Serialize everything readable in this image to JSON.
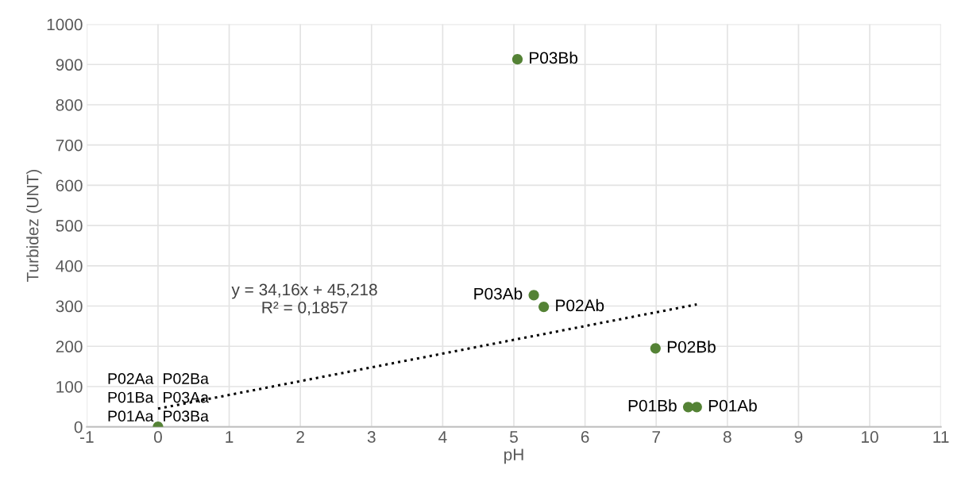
{
  "chart_data": {
    "type": "scatter",
    "xlabel": "pH",
    "ylabel": "Turbidez (UNT)",
    "x": [
      0,
      5.05,
      5.28,
      5.42,
      6.99,
      7.45,
      7.57
    ],
    "series": [
      {
        "color": "#548235",
        "marker": "circle",
        "values": [
          0,
          913,
          327,
          298,
          195,
          49,
          49
        ]
      },
      {
        "type": "line",
        "color": "#000000",
        "line_style": "dotted",
        "marker": "none",
        "x": [
          0,
          7.57
        ],
        "values": [
          45,
          304
        ]
      }
    ],
    "annotations": [
      {
        "text": "P01Aa",
        "x": 0,
        "y": 0
      },
      {
        "text": "P01Ba",
        "x": 0,
        "y": 0
      },
      {
        "text": "P02Aa",
        "x": 0,
        "y": 0
      },
      {
        "text": "P03Ba",
        "x": 0,
        "y": 0
      },
      {
        "text": "P03Aa",
        "x": 0,
        "y": 0
      },
      {
        "text": "P02Ba",
        "x": 0,
        "y": 0
      },
      {
        "text": "P03Bb",
        "x": 5.05,
        "y": 913
      },
      {
        "text": "P03Ab",
        "x": 5.28,
        "y": 327
      },
      {
        "text": "P02Ab",
        "x": 5.42,
        "y": 298
      },
      {
        "text": "P02Bb",
        "x": 6.99,
        "y": 195
      },
      {
        "text": "P01Bb",
        "x": 7.45,
        "y": 49
      },
      {
        "text": "P01Ab",
        "x": 7.57,
        "y": 49
      },
      "y = 34,16x + 45,218\nR² = 0,1857"
    ],
    "xlim": [
      -1,
      11
    ],
    "xticks": [
      -1,
      0,
      1,
      2,
      3,
      4,
      5,
      6,
      7,
      8,
      9,
      10,
      11
    ],
    "ylim": [
      0,
      1000
    ],
    "yticks": [
      0,
      100,
      200,
      300,
      400,
      500,
      600,
      700,
      800,
      900,
      1000
    ],
    "grid": true,
    "legend": false
  }
}
